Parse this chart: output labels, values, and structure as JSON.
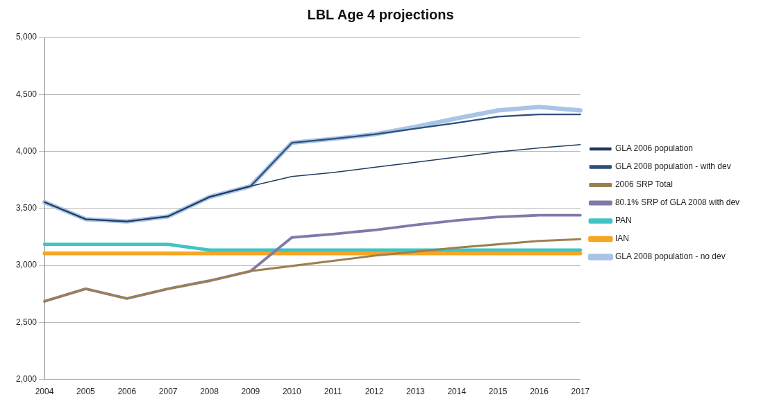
{
  "chart_data": {
    "type": "line",
    "title": "LBL Age 4 projections",
    "categories": [
      "2004",
      "2005",
      "2006",
      "2007",
      "2008",
      "2009",
      "2010",
      "2011",
      "2012",
      "2013",
      "2014",
      "2015",
      "2016",
      "2017"
    ],
    "series": [
      {
        "name": "GLA 2006 population",
        "color": "#1f3a5f",
        "values": [
          3555,
          3405,
          3385,
          3430,
          3600,
          3695,
          3780,
          3815,
          3860,
          3905,
          3950,
          3995,
          4030,
          4060
        ]
      },
      {
        "name": "GLA 2008 population - with dev",
        "color": "#2e4f7a",
        "values": [
          3555,
          3405,
          3385,
          3430,
          3600,
          3695,
          4075,
          4110,
          4150,
          4200,
          4250,
          4305,
          4325,
          4325
        ]
      },
      {
        "name": "2006 SRP Total",
        "color": "#9c8150",
        "values": [
          2685,
          2795,
          2710,
          2795,
          2865,
          2950,
          2995,
          3040,
          3085,
          3120,
          3155,
          3185,
          3215,
          3230
        ]
      },
      {
        "name": "80.1% SRP of GLA 2008 with dev",
        "color": "#8079aa",
        "values": [
          2685,
          2795,
          2710,
          2795,
          2865,
          2950,
          3245,
          3275,
          3310,
          3355,
          3395,
          3425,
          3440,
          3440
        ]
      },
      {
        "name": "PAN",
        "color": "#3fc4c4",
        "values": [
          3185,
          3185,
          3185,
          3185,
          3135,
          3135,
          3135,
          3135,
          3135,
          3135,
          3135,
          3135,
          3135,
          3135
        ]
      },
      {
        "name": "IAN",
        "color": "#f5a623",
        "values": [
          3105,
          3105,
          3105,
          3105,
          3105,
          3105,
          3105,
          3105,
          3105,
          3105,
          3105,
          3105,
          3105,
          3105
        ]
      },
      {
        "name": "GLA 2008 population - no dev",
        "color": "#a9c4e6",
        "values": [
          3555,
          3405,
          3385,
          3430,
          3600,
          3695,
          4075,
          4110,
          4150,
          4215,
          4290,
          4360,
          4390,
          4360
        ]
      }
    ],
    "ylim": [
      2000,
      5000
    ],
    "yticks": [
      {
        "value": 2000,
        "label": "2,000"
      },
      {
        "value": 2500,
        "label": "2,500"
      },
      {
        "value": 3000,
        "label": "3,000"
      },
      {
        "value": 3500,
        "label": "3,500"
      },
      {
        "value": 4000,
        "label": "4,000"
      },
      {
        "value": 4500,
        "label": "4,500"
      },
      {
        "value": 5000,
        "label": "5,000"
      }
    ],
    "grid": "y",
    "legend": "right",
    "marker": "none",
    "line_style": "solid"
  }
}
